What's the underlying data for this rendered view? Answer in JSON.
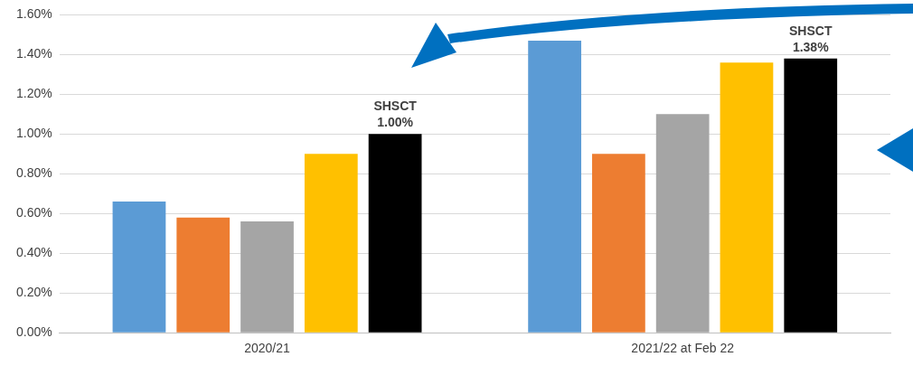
{
  "chart_data": {
    "type": "bar",
    "categories": [
      "2020/21",
      "2021/22 at Feb 22"
    ],
    "series": [
      {
        "color": "#5b9bd5",
        "values": [
          0.66,
          1.47
        ]
      },
      {
        "color": "#ed7d31",
        "values": [
          0.58,
          0.9
        ]
      },
      {
        "color": "#a5a5a5",
        "values": [
          0.56,
          1.1
        ]
      },
      {
        "color": "#ffc000",
        "values": [
          0.9,
          1.36
        ]
      },
      {
        "color": "#000000",
        "values": [
          1.0,
          1.38
        ],
        "value_labels": [
          "SHSCT\n1.00%",
          "SHSCT\n1.38%"
        ]
      }
    ],
    "ylim": [
      0,
      1.6
    ],
    "yticks": [
      {
        "value": 0,
        "label": "0.00%"
      },
      {
        "value": 0.2,
        "label": "0.20%"
      },
      {
        "value": 0.4,
        "label": "0.40%"
      },
      {
        "value": 0.6,
        "label": "0.60%"
      },
      {
        "value": 0.8,
        "label": "0.80%"
      },
      {
        "value": 1.0,
        "label": "1.00%"
      },
      {
        "value": 1.2,
        "label": "1.20%"
      },
      {
        "value": 1.4,
        "label": "1.40%"
      },
      {
        "value": 1.6,
        "label": "1.60%"
      }
    ],
    "grid": "y",
    "legend": false
  }
}
